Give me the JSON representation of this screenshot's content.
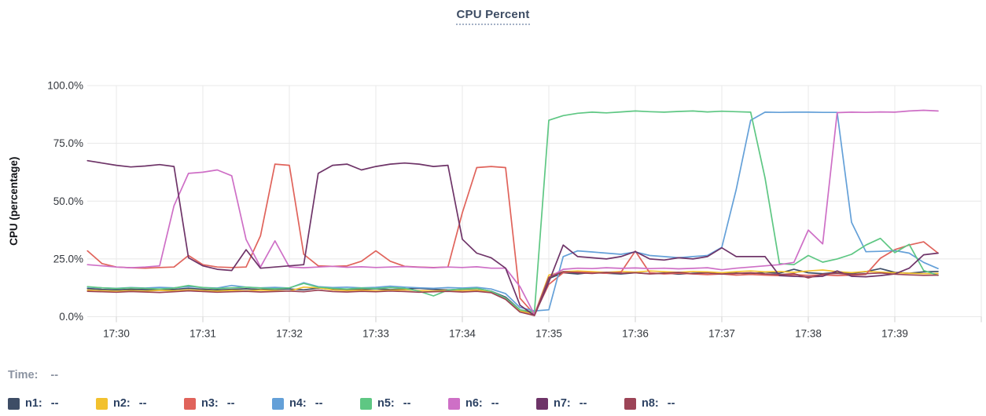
{
  "title": "CPU Percent",
  "time_row": {
    "label": "Time:",
    "value": "--"
  },
  "legend": {
    "items": [
      {
        "label": "n1:",
        "value": "--",
        "color": "#3e4d66"
      },
      {
        "label": "n2:",
        "value": "--",
        "color": "#f2c12e"
      },
      {
        "label": "n3:",
        "value": "--",
        "color": "#e0635b"
      },
      {
        "label": "n4:",
        "value": "--",
        "color": "#64a0d8"
      },
      {
        "label": "n5:",
        "value": "--",
        "color": "#5ec783"
      },
      {
        "label": "n6:",
        "value": "--",
        "color": "#ce6fc6"
      },
      {
        "label": "n7:",
        "value": "--",
        "color": "#6e3468"
      },
      {
        "label": "n8:",
        "value": "--",
        "color": "#9c4457"
      }
    ]
  },
  "chart_data": {
    "type": "line",
    "title": "CPU Percent",
    "xlabel": "",
    "ylabel": "CPU (percentage)",
    "ylim": [
      0,
      100
    ],
    "y_gridlines": [
      0,
      25,
      50,
      75,
      100
    ],
    "y_tick_labels": [
      "0.0%",
      "25.0%",
      "50.0%",
      "75.0%",
      "100.0%"
    ],
    "x_tick_labels": [
      "17:30",
      "17:31",
      "17:32",
      "17:33",
      "17:34",
      "17:35",
      "17:36",
      "17:37",
      "17:38",
      "17:39"
    ],
    "x_start_time": "17:29:40",
    "x_end_time": "17:39:30",
    "sample_interval_seconds": 10,
    "start_offset_seconds": -20,
    "grid": true,
    "legend_position": "bottom",
    "series": [
      {
        "name": "n1",
        "color": "#3e4d66",
        "values": [
          12.2,
          11.8,
          11.6,
          11.9,
          11.7,
          11.5,
          11.8,
          12.3,
          11.9,
          11.6,
          11.8,
          12.1,
          11.7,
          11.9,
          12.0,
          11.6,
          12.4,
          11.8,
          11.6,
          11.9,
          12.1,
          11.7,
          12.0,
          12.3,
          11.8,
          11.6,
          11.9,
          12.2,
          11.0,
          8.5,
          3.0,
          0.8,
          16.5,
          19.0,
          18.5,
          19.2,
          18.8,
          18.5,
          19.0,
          18.6,
          18.9,
          18.4,
          18.8,
          19.1,
          18.6,
          18.9,
          18.5,
          19.3,
          18.8,
          20.5,
          19.0,
          18.6,
          19.2,
          18.8,
          19.5,
          20.8,
          19.2,
          18.8,
          19.4,
          19.6
        ]
      },
      {
        "name": "n2",
        "color": "#f2c12e",
        "values": [
          11.5,
          11.2,
          11.0,
          11.3,
          11.1,
          11.4,
          11.2,
          11.6,
          11.3,
          11.1,
          11.4,
          11.2,
          11.5,
          11.3,
          11.1,
          12.8,
          12.5,
          11.6,
          11.3,
          11.5,
          11.2,
          11.4,
          11.6,
          11.3,
          11.1,
          11.4,
          11.2,
          11.5,
          10.8,
          8.0,
          2.5,
          1.0,
          18.0,
          19.5,
          19.8,
          19.5,
          19.2,
          19.6,
          19.3,
          19.8,
          19.5,
          19.2,
          19.6,
          19.4,
          19.0,
          19.5,
          19.8,
          19.4,
          19.6,
          19.2,
          19.8,
          20.2,
          19.5,
          19.1,
          19.6,
          19.3,
          19.0,
          18.8,
          18.6,
          18.7
        ]
      },
      {
        "name": "n3",
        "color": "#e0635b",
        "values": [
          28.5,
          23.0,
          21.5,
          21.2,
          21.0,
          21.3,
          21.5,
          26.5,
          22.5,
          21.5,
          21.3,
          21.5,
          35.0,
          66.0,
          65.5,
          27.0,
          22.0,
          21.8,
          22.0,
          24.0,
          28.5,
          24.0,
          21.8,
          21.5,
          21.3,
          21.5,
          45.0,
          64.5,
          65.0,
          64.5,
          8.0,
          1.0,
          14.0,
          19.0,
          19.3,
          19.0,
          18.8,
          19.2,
          28.4,
          19.0,
          18.5,
          18.8,
          18.5,
          18.2,
          18.5,
          18.0,
          18.3,
          18.0,
          17.8,
          18.2,
          17.9,
          18.1,
          17.8,
          18.0,
          18.3,
          25.3,
          29.0,
          31.0,
          32.4,
          27.5
        ]
      },
      {
        "name": "n4",
        "color": "#64a0d8",
        "values": [
          12.8,
          12.5,
          12.3,
          12.6,
          12.4,
          12.7,
          12.5,
          13.0,
          12.6,
          12.4,
          13.5,
          12.8,
          12.5,
          12.7,
          12.4,
          14.7,
          13.0,
          12.6,
          12.8,
          12.5,
          12.7,
          13.2,
          12.8,
          12.5,
          12.3,
          12.6,
          12.4,
          12.7,
          12.0,
          10.0,
          4.0,
          2.5,
          3.0,
          26.0,
          28.5,
          28.0,
          27.5,
          27.0,
          28.0,
          26.5,
          26.0,
          25.5,
          26.0,
          26.5,
          30.0,
          55.0,
          85.0,
          88.5,
          88.4,
          88.5,
          88.5,
          88.4,
          88.4,
          40.8,
          28.1,
          28.3,
          28.6,
          27.5,
          23.5,
          20.8
        ]
      },
      {
        "name": "n5",
        "color": "#5ec783",
        "values": [
          13.0,
          12.5,
          12.2,
          12.5,
          12.3,
          12.0,
          12.4,
          13.5,
          12.6,
          12.2,
          12.5,
          12.8,
          12.4,
          12.1,
          12.5,
          14.4,
          12.8,
          12.3,
          12.0,
          12.4,
          12.2,
          12.6,
          12.3,
          11.0,
          9.0,
          11.5,
          12.0,
          12.3,
          11.0,
          8.0,
          3.0,
          2.0,
          85.0,
          87.0,
          88.0,
          88.5,
          88.2,
          88.6,
          89.0,
          88.7,
          88.5,
          88.8,
          89.0,
          88.6,
          88.9,
          88.7,
          88.5,
          60.0,
          23.0,
          22.5,
          26.5,
          23.6,
          25.0,
          27.0,
          31.0,
          33.9,
          27.7,
          31.3,
          20.0,
          17.9
        ]
      },
      {
        "name": "n6",
        "color": "#ce6fc6",
        "values": [
          22.5,
          22.0,
          21.5,
          21.2,
          21.5,
          22.0,
          48.0,
          62.0,
          62.5,
          63.5,
          61.0,
          33.4,
          21.5,
          32.8,
          21.5,
          21.2,
          21.5,
          21.8,
          21.4,
          21.6,
          21.3,
          21.5,
          21.7,
          21.4,
          21.2,
          21.5,
          21.3,
          21.6,
          21.0,
          21.0,
          13.0,
          1.0,
          17.0,
          20.5,
          21.0,
          20.8,
          21.2,
          20.9,
          21.1,
          20.8,
          21.0,
          20.7,
          20.9,
          21.2,
          20.3,
          21.0,
          21.5,
          22.0,
          22.5,
          23.5,
          37.5,
          31.5,
          88.3,
          88.5,
          88.4,
          88.6,
          88.5,
          89.0,
          89.3,
          89.0
        ]
      },
      {
        "name": "n7",
        "color": "#6e3468",
        "values": [
          67.5,
          66.5,
          65.5,
          64.8,
          65.2,
          65.8,
          65.0,
          25.5,
          22.0,
          20.5,
          20.0,
          29.0,
          21.0,
          21.5,
          22.0,
          22.5,
          62.0,
          65.5,
          66.0,
          63.5,
          65.0,
          66.0,
          66.5,
          66.0,
          65.0,
          65.5,
          33.5,
          27.5,
          25.5,
          21.0,
          5.0,
          0.5,
          15.0,
          31.0,
          26.0,
          25.5,
          25.0,
          26.0,
          28.2,
          25.0,
          24.5,
          25.5,
          25.0,
          26.0,
          29.8,
          26.0,
          26.0,
          26.0,
          17.8,
          17.5,
          17.2,
          17.5,
          19.8,
          17.5,
          17.3,
          17.8,
          18.5,
          21.0,
          26.8,
          27.5
        ]
      },
      {
        "name": "n8",
        "color": "#9c4457",
        "values": [
          11.0,
          10.8,
          10.6,
          10.9,
          10.7,
          10.5,
          10.8,
          11.2,
          10.9,
          10.6,
          10.8,
          11.0,
          10.7,
          10.9,
          11.1,
          10.8,
          11.5,
          10.9,
          10.7,
          11.0,
          10.8,
          11.1,
          10.9,
          10.6,
          10.8,
          11.0,
          10.7,
          11.0,
          10.4,
          7.5,
          2.0,
          0.5,
          17.0,
          19.5,
          19.0,
          18.7,
          19.2,
          18.8,
          19.0,
          18.5,
          18.8,
          19.2,
          18.6,
          18.9,
          18.4,
          18.7,
          19.0,
          18.5,
          18.2,
          18.6,
          16.8,
          18.4,
          18.7,
          18.3,
          18.6,
          18.9,
          18.4,
          18.1,
          17.9,
          18.0
        ]
      }
    ]
  }
}
